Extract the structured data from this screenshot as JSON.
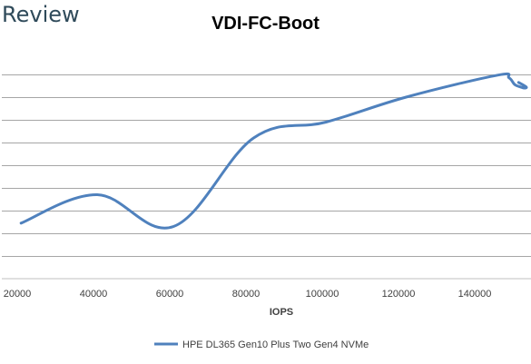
{
  "brand": {
    "text": "Review"
  },
  "chart_data": {
    "type": "line",
    "title": "VDI-FC-Boot",
    "xlabel": "IOPS",
    "ylabel": "",
    "xlim": [
      20000,
      155000
    ],
    "ylim": [
      0,
      9
    ],
    "x_ticks": [
      20000,
      40000,
      60000,
      80000,
      100000,
      120000,
      140000
    ],
    "y_gridlines": [
      1,
      2,
      3,
      4,
      5,
      6,
      7,
      8,
      9
    ],
    "grid": true,
    "legend": "bottom",
    "series": [
      {
        "name": "HPE DL365 Gen10 Plus Two Gen4 NVMe",
        "color": "#4f81bd",
        "x": [
          21000,
          41000,
          61000,
          82000,
          101000,
          122000,
          146000,
          149000,
          150500,
          152000,
          153000,
          153500,
          151500
        ],
        "y": [
          2.45,
          3.7,
          2.3,
          6.2,
          6.9,
          8.0,
          8.97,
          8.85,
          8.55,
          8.45,
          8.4,
          8.45,
          8.65
        ]
      }
    ]
  }
}
